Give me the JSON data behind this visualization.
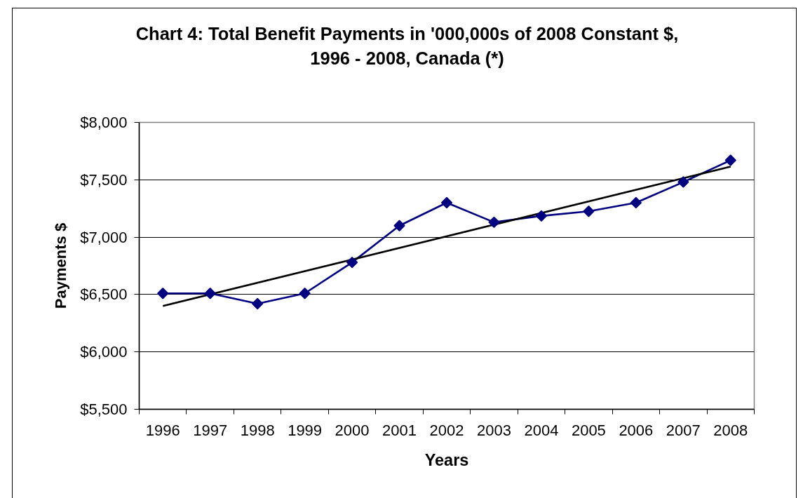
{
  "chart_data": {
    "type": "line",
    "title": "Chart 4: Total Benefit Payments in '000,000s of 2008 Constant $,\n1996 - 2008, Canada (*)",
    "xlabel": "Years",
    "ylabel": "Payments $",
    "x": [
      1996,
      1997,
      1998,
      1999,
      2000,
      2001,
      2002,
      2003,
      2004,
      2005,
      2006,
      2007,
      2008
    ],
    "series": [
      {
        "color": "#000080",
        "values": [
          6510,
          6510,
          6420,
          6510,
          6780,
          7100,
          7300,
          7130,
          7185,
          7225,
          7300,
          7480,
          7670
        ]
      },
      {
        "type": "line",
        "x": [
          1996,
          2008
        ],
        "values": [
          6400,
          7615
        ],
        "color": "#000000",
        "marker": "none"
      }
    ],
    "xlim": [
      1995.5,
      2008.5
    ],
    "xticks": [
      1996,
      1997,
      1998,
      1999,
      2000,
      2001,
      2002,
      2003,
      2004,
      2005,
      2006,
      2007,
      2008
    ],
    "ylim": [
      5500,
      8000
    ],
    "yticks": [
      {
        "value": 5500,
        "label": "$5,500"
      },
      {
        "value": 6000,
        "label": "$6,000"
      },
      {
        "value": 6500,
        "label": "$6,500"
      },
      {
        "value": 7000,
        "label": "$7,000"
      },
      {
        "value": 7500,
        "label": "$7,500"
      },
      {
        "value": 8000,
        "label": "$8,000"
      }
    ],
    "grid": "y",
    "marker": "diamond",
    "line_style": "solid"
  }
}
